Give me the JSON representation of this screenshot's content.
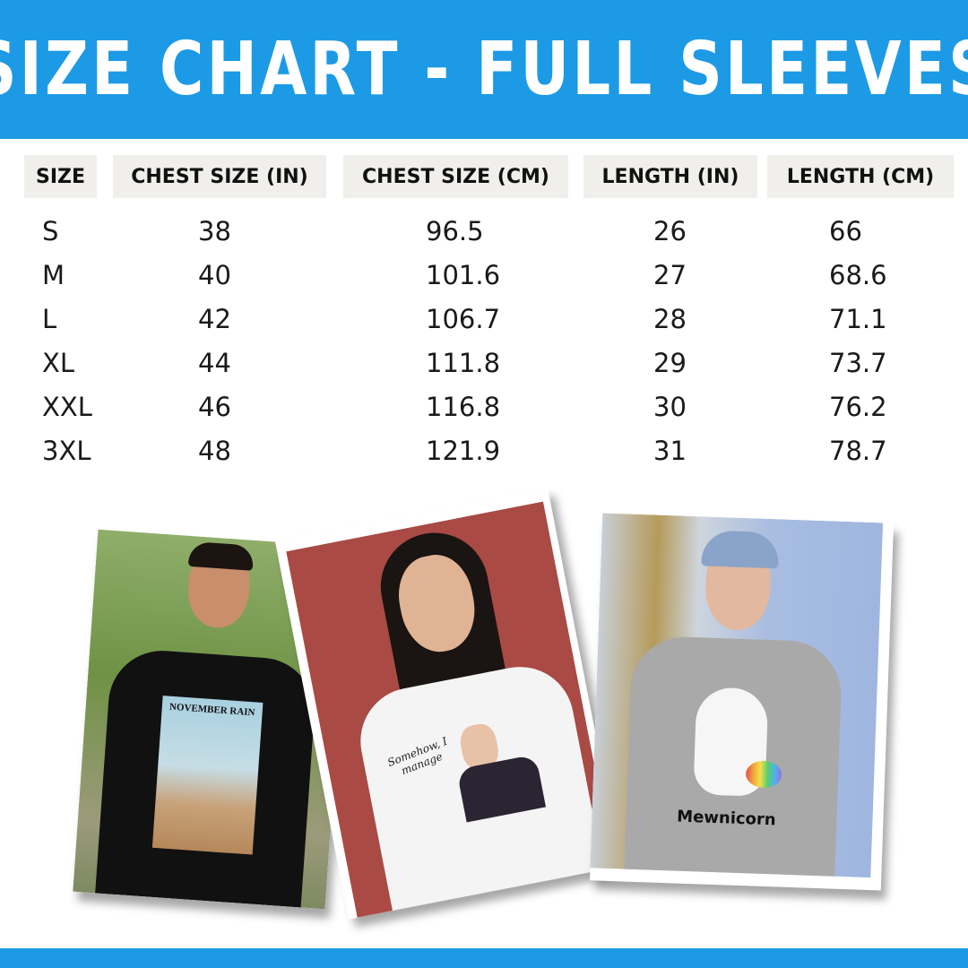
{
  "title": "SIZE CHART - FULL SLEEVES",
  "colors": {
    "brand_blue": "#1d9ae5",
    "header_cell_bg": "#f0efeb"
  },
  "table": {
    "headers": [
      "SIZE",
      "CHEST SIZE (IN)",
      "CHEST SIZE (CM)",
      "LENGTH (IN)",
      "LENGTH (CM)"
    ],
    "rows": [
      [
        "S",
        "38",
        "96.5",
        "26",
        "66"
      ],
      [
        "M",
        "40",
        "101.6",
        "27",
        "68.6"
      ],
      [
        "L",
        "42",
        "106.7",
        "28",
        "71.1"
      ],
      [
        "XL",
        "44",
        "111.8",
        "29",
        "73.7"
      ],
      [
        "XXL",
        "46",
        "116.8",
        "30",
        "76.2"
      ],
      [
        "3XL",
        "48",
        "121.9",
        "31",
        "78.7"
      ]
    ]
  },
  "photos": [
    {
      "shirt_color": "#111111",
      "print_text": "NOVEMBER RAIN"
    },
    {
      "shirt_color": "#f4f4f4",
      "print_text": "Somehow, I manage"
    },
    {
      "shirt_color": "#a9a9a9",
      "print_text": "Mewnicorn"
    }
  ]
}
